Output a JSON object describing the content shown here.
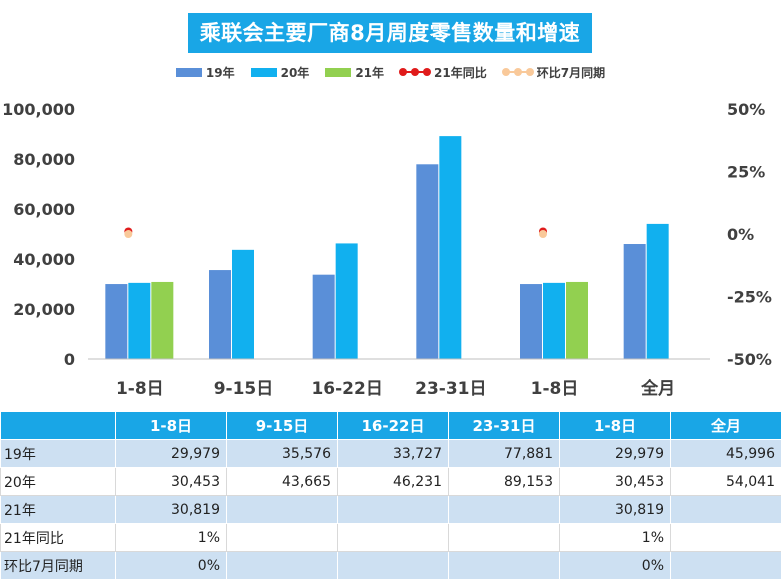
{
  "chart_data": {
    "type": "bar",
    "title": "乘联会主要厂商8月周度零售数量和增速",
    "categories": [
      "1-8日",
      "9-15日",
      "16-22日",
      "23-31日",
      "1-8日",
      "全月"
    ],
    "series": [
      {
        "name": "19年",
        "kind": "bar",
        "color": "#5a8fd8",
        "values": [
          29979,
          35576,
          33727,
          77881,
          29979,
          45996
        ]
      },
      {
        "name": "20年",
        "kind": "bar",
        "color": "#11b0ef",
        "values": [
          30453,
          43665,
          46231,
          89153,
          30453,
          54041
        ]
      },
      {
        "name": "21年",
        "kind": "bar",
        "color": "#92d050",
        "values": [
          30819,
          null,
          null,
          null,
          30819,
          null
        ]
      },
      {
        "name": "21年同比",
        "kind": "line",
        "axis": "right",
        "color": "#e01b1b",
        "values": [
          0.01,
          null,
          null,
          null,
          0.01,
          null
        ]
      },
      {
        "name": "环比7月同期",
        "kind": "line",
        "axis": "right",
        "color": "#f9c99a",
        "values": [
          0.0,
          null,
          null,
          null,
          0.0,
          null
        ]
      }
    ],
    "y_left": {
      "min": 0,
      "max": 100000,
      "ticks": [
        "0",
        "20,000",
        "40,000",
        "60,000",
        "80,000",
        "100,000"
      ]
    },
    "y_right": {
      "min": -0.5,
      "max": 0.5,
      "ticks": [
        "-50%",
        "-25%",
        "0%",
        "25%",
        "50%"
      ]
    },
    "grid": false,
    "legend_position": "top"
  },
  "table": {
    "headers": [
      "",
      "1-8日",
      "9-15日",
      "16-22日",
      "23-31日",
      "1-8日",
      "全月"
    ],
    "rows": [
      {
        "label": "19年",
        "cells": [
          "29,979",
          "35,576",
          "33,727",
          "77,881",
          "29,979",
          "45,996"
        ]
      },
      {
        "label": "20年",
        "cells": [
          "30,453",
          "43,665",
          "46,231",
          "89,153",
          "30,453",
          "54,041"
        ]
      },
      {
        "label": "21年",
        "cells": [
          "30,819",
          "",
          "",
          "",
          "30,819",
          ""
        ]
      },
      {
        "label": "21年同比",
        "cells": [
          "1%",
          "",
          "",
          "",
          "1%",
          ""
        ]
      },
      {
        "label": "环比7月同期",
        "cells": [
          "0%",
          "",
          "",
          "",
          "0%",
          ""
        ]
      }
    ]
  }
}
